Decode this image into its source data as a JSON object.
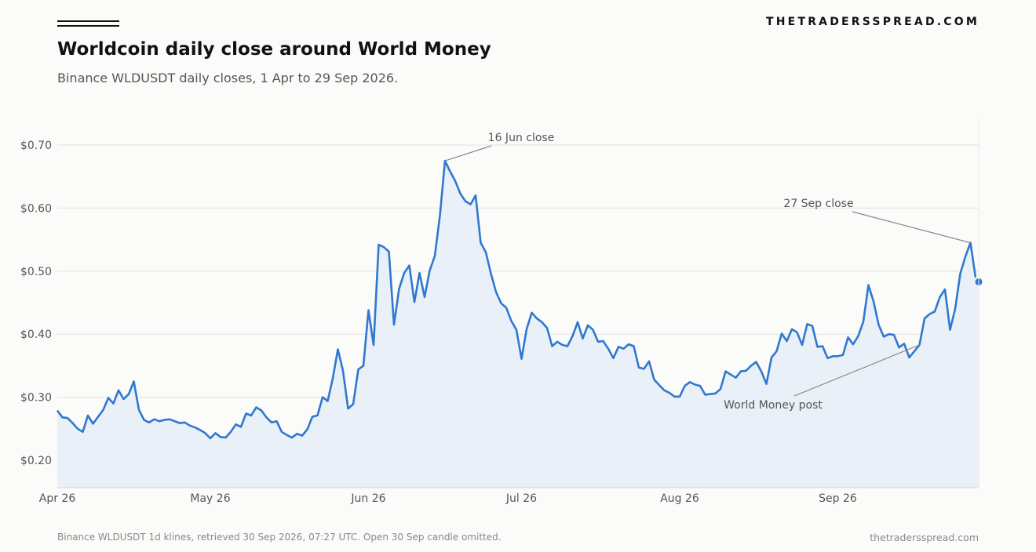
{
  "header": {
    "brand": "THETRADERSSPREAD.COM",
    "title": "Worldcoin daily close around World Money",
    "subtitle": "Binance WLDUSDT daily closes, 1 Apr to 29 Sep 2026."
  },
  "footer": {
    "source": "Binance WLDUSDT 1d klines, retrieved 30 Sep 2026, 07:27 UTC. Open 30 Sep candle omitted.",
    "site": "thetradersspread.com"
  },
  "colors": {
    "line": "#2f78d0",
    "fill": "#eaf0f8",
    "grid": "#e2e2e2",
    "annotation": "#888888"
  },
  "chart_data": {
    "type": "area",
    "start_date": "2026-04-01",
    "x_tick_labels": [
      "Apr 26",
      "May 26",
      "Jun 26",
      "Jul 26",
      "Aug 26",
      "Sep 26"
    ],
    "y_tick_labels": [
      "$0.20",
      "$0.30",
      "$0.40",
      "$0.50",
      "$0.60",
      "$0.70"
    ],
    "y_ticks": [
      0.2,
      0.3,
      0.4,
      0.5,
      0.6,
      0.7
    ],
    "ylim": [
      0.155,
      0.7
    ],
    "grid": "horizontal",
    "series": [
      {
        "values": [
          0.279,
          0.268,
          0.267,
          0.259,
          0.25,
          0.245,
          0.271,
          0.258,
          0.269,
          0.28,
          0.299,
          0.29,
          0.311,
          0.297,
          0.305,
          0.325,
          0.28,
          0.264,
          0.26,
          0.265,
          0.262,
          0.264,
          0.265,
          0.262,
          0.259,
          0.26,
          0.255,
          0.252,
          0.248,
          0.243,
          0.235,
          0.243,
          0.237,
          0.236,
          0.245,
          0.257,
          0.253,
          0.274,
          0.271,
          0.284,
          0.279,
          0.268,
          0.26,
          0.262,
          0.245,
          0.24,
          0.236,
          0.242,
          0.239,
          0.249,
          0.269,
          0.271,
          0.3,
          0.294,
          0.33,
          0.376,
          0.342,
          0.282,
          0.289,
          0.344,
          0.35,
          0.438,
          0.383,
          0.542,
          0.538,
          0.531,
          0.415,
          0.472,
          0.497,
          0.509,
          0.451,
          0.497,
          0.459,
          0.501,
          0.524,
          0.588,
          0.675,
          0.658,
          0.643,
          0.623,
          0.611,
          0.606,
          0.62,
          0.545,
          0.53,
          0.496,
          0.467,
          0.449,
          0.442,
          0.421,
          0.407,
          0.361,
          0.408,
          0.434,
          0.425,
          0.419,
          0.41,
          0.381,
          0.388,
          0.383,
          0.381,
          0.397,
          0.419,
          0.393,
          0.414,
          0.407,
          0.388,
          0.389,
          0.377,
          0.362,
          0.38,
          0.377,
          0.384,
          0.381,
          0.347,
          0.345,
          0.357,
          0.328,
          0.319,
          0.311,
          0.307,
          0.301,
          0.301,
          0.318,
          0.324,
          0.32,
          0.318,
          0.304,
          0.305,
          0.306,
          0.313,
          0.341,
          0.336,
          0.331,
          0.341,
          0.342,
          0.35,
          0.356,
          0.341,
          0.321,
          0.363,
          0.373,
          0.401,
          0.389,
          0.408,
          0.403,
          0.383,
          0.416,
          0.413,
          0.38,
          0.381,
          0.362,
          0.365,
          0.365,
          0.367,
          0.395,
          0.384,
          0.397,
          0.42,
          0.478,
          0.452,
          0.415,
          0.396,
          0.4,
          0.399,
          0.379,
          0.385,
          0.363,
          0.373,
          0.383,
          0.425,
          0.432,
          0.436,
          0.459,
          0.471,
          0.407,
          0.44,
          0.496,
          0.523,
          0.545,
          0.49
        ],
        "last_point": 0.483
      }
    ],
    "annotations": [
      {
        "label": "16 Jun close",
        "date": "2026-06-16",
        "value": 0.675
      },
      {
        "label": "27 Sep close",
        "date": "2026-09-27",
        "value": 0.545
      },
      {
        "label": "World Money post",
        "date": "2026-09-17",
        "value": 0.383
      }
    ]
  }
}
